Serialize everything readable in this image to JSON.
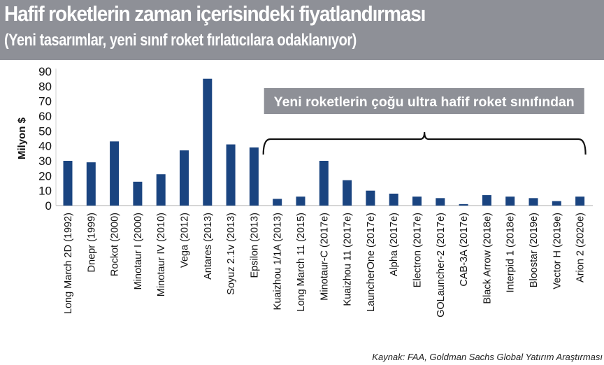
{
  "header": {
    "title": "Hafif roketlerin zaman içerisindeki fiyatlandırması",
    "subtitle": "(Yeni tasarımlar, yeni sınıf roket fırlatıcılara odaklanıyor)"
  },
  "source": "Kaynak: FAA, Goldman Sachs Global Yatırım Araştırması",
  "chart_data": {
    "type": "bar",
    "title": "Hafif roketlerin zaman içerisindeki fiyatlandırması",
    "subtitle": "(Yeni tasarımlar, yeni sınıf roket fırlatıcılara odaklanıyor)",
    "xlabel": "",
    "ylabel": "Milyon $",
    "ylim": [
      0,
      90
    ],
    "yticks": [
      0,
      10,
      20,
      30,
      40,
      50,
      60,
      70,
      80,
      90
    ],
    "grid": false,
    "bar_color": "#1a4480",
    "categories": [
      "Long March 2D (1992)",
      "Dnepr (1999)",
      "Rockot (2000)",
      "Minotaur I (2000)",
      "Minotaur IV (2010)",
      "Vega (2012)",
      "Antares (2013)",
      "Soyuz 2.1v (2013)",
      "Epsilon (2013)",
      "Kuaizhou 1/1A (2013)",
      "Long March 11 (2015)",
      "Minotaur-C (2017e)",
      "Kuaizhou 11 (2017e)",
      "LauncherOne (2017e)",
      "Alpha (2017e)",
      "Electron (2017e)",
      "GOLauncher-2 (2017e)",
      "CAB-3A (2017e)",
      "Black Arrow (2018e)",
      "Interpid 1 (2018e)",
      "Bloostar (2019e)",
      "Vector H (2019e)",
      "Arion 2 (2020e)"
    ],
    "values": [
      30,
      29,
      43,
      16,
      21,
      37,
      85,
      41,
      39,
      4.5,
      6,
      30,
      17,
      10,
      8,
      6,
      5,
      1,
      7,
      6,
      5,
      3,
      6
    ],
    "annotation": {
      "text": "Yeni roketlerin çoğu ultra hafif roket sınıfından",
      "from_category": "Kuaizhou 1/1A (2013)",
      "to_category": "Arion 2 (2020e)",
      "box_color": "#8e9097"
    }
  }
}
